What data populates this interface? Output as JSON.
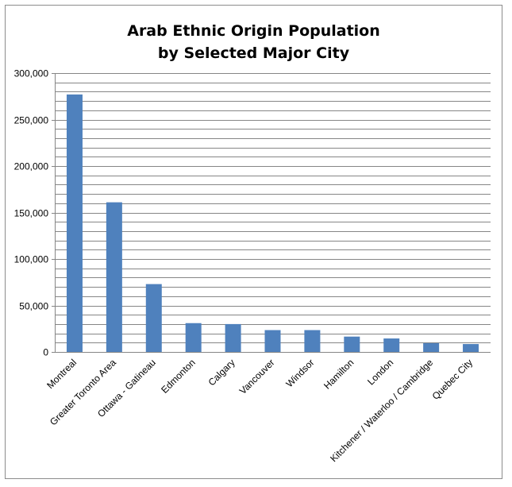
{
  "chart_data": {
    "type": "bar",
    "title_lines": [
      "Arab Ethnic Origin Population",
      "by Selected Major City"
    ],
    "categories": [
      "Montreal",
      "Greater Toronto Area",
      "Ottawa - Gatineau",
      "Edmonton",
      "Calgary",
      "Vancouver",
      "Windsor",
      "Hamilton",
      "London",
      "Kitchener / Waterloo / Cambridge",
      "Quebec City"
    ],
    "values": [
      277000,
      161000,
      73000,
      31000,
      30000,
      23500,
      23500,
      16500,
      14500,
      9500,
      8500
    ],
    "ylim": [
      0,
      300000
    ],
    "yticks": [
      0,
      50000,
      100000,
      150000,
      200000,
      250000,
      300000
    ],
    "ytick_labels": [
      "0",
      "50,000",
      "100,000",
      "150,000",
      "200,000",
      "250,000",
      "300,000"
    ],
    "minor_grid_step": 10000,
    "grid": true,
    "legend": "none",
    "bar_color": "#4f81bd",
    "grid_color": "#868686"
  }
}
